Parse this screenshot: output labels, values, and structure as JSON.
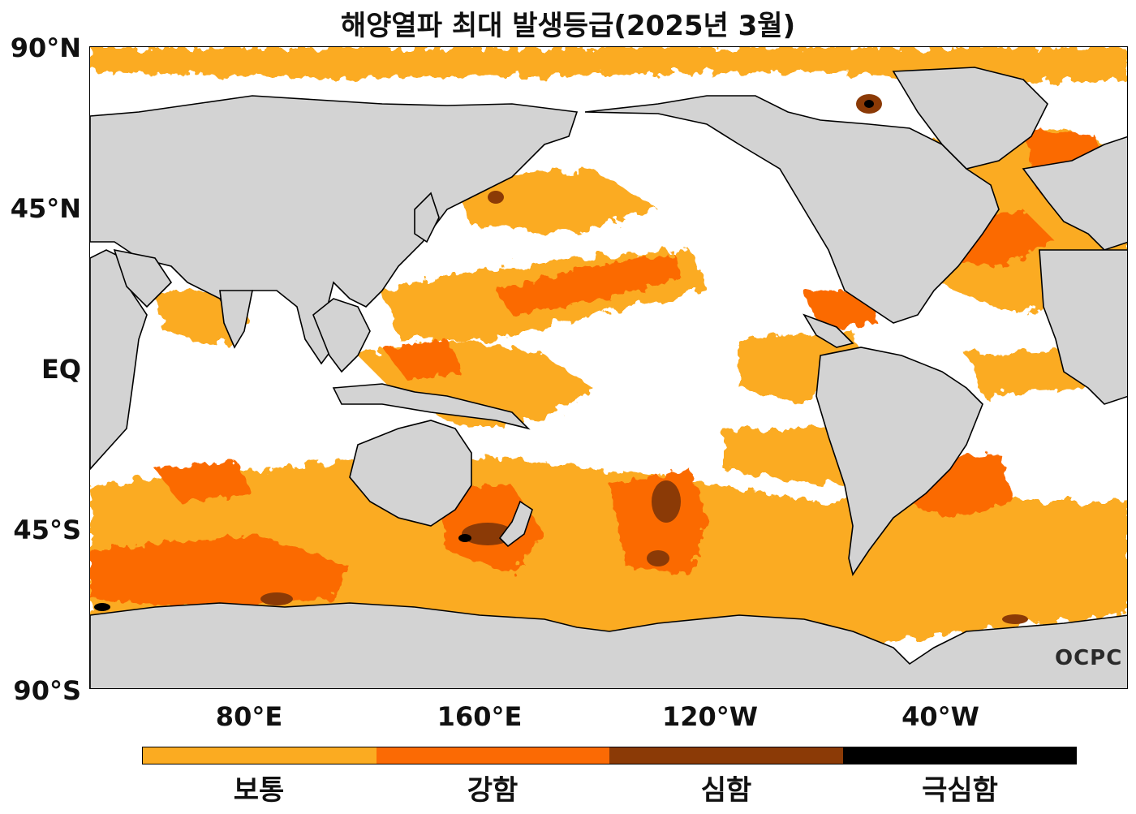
{
  "title": "해양열파 최대 발생등급(2025년 3월)",
  "lat_labels": [
    "90°N",
    "45°N",
    "EQ",
    "45°S",
    "90°S"
  ],
  "lon_labels": [
    "80°E",
    "160°E",
    "120°W",
    "40°W"
  ],
  "legend": {
    "categories": [
      {
        "label": "보통",
        "color": "#fbab21"
      },
      {
        "label": "강함",
        "color": "#fb6a04"
      },
      {
        "label": "심함",
        "color": "#8b3a06"
      },
      {
        "label": "극심함",
        "color": "#000000"
      }
    ]
  },
  "colors": {
    "land": "#d3d3d3",
    "ocean": "#ffffff",
    "coastline": "#000000"
  },
  "logo_text": "OCPC"
}
